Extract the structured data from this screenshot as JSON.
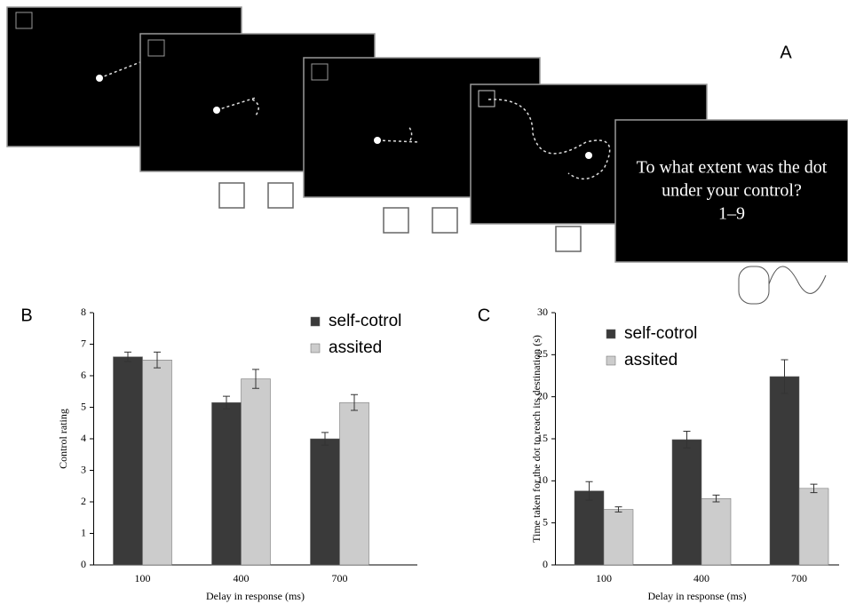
{
  "panel_a": {
    "label": "A",
    "question_line_1": "To what extent was the dot",
    "question_line_2": "under your control?",
    "scale": "1–9"
  },
  "chart_data": [
    {
      "type": "bar",
      "panel_label": "B",
      "x_label": "Delay in response (ms)",
      "y_label": "Control rating",
      "categories": [
        "100",
        "400",
        "700"
      ],
      "ylim": [
        0,
        8
      ],
      "yticks": [
        0,
        1,
        2,
        3,
        4,
        5,
        6,
        7,
        8
      ],
      "series": [
        {
          "name": "self-cotrol",
          "color": "#3a3a3a",
          "values": [
            6.6,
            5.15,
            4.0
          ],
          "errors": [
            0.15,
            0.2,
            0.2
          ]
        },
        {
          "name": "assited",
          "color": "#cccccc",
          "values": [
            6.5,
            5.9,
            5.15
          ],
          "errors": [
            0.25,
            0.3,
            0.25
          ]
        }
      ]
    },
    {
      "type": "bar",
      "panel_label": "C",
      "x_label": "Delay in response (ms)",
      "y_label": "Time taken for the dot to reach its destination (s)",
      "categories": [
        "100",
        "400",
        "700"
      ],
      "ylim": [
        0,
        30
      ],
      "yticks": [
        0,
        5,
        10,
        15,
        20,
        25,
        30
      ],
      "series": [
        {
          "name": "self-cotrol",
          "color": "#3a3a3a",
          "values": [
            8.8,
            14.9,
            22.4
          ],
          "errors": [
            1.1,
            1.0,
            2.0
          ]
        },
        {
          "name": "assited",
          "color": "#cccccc",
          "values": [
            6.6,
            7.9,
            9.1
          ],
          "errors": [
            0.3,
            0.4,
            0.5
          ]
        }
      ]
    }
  ]
}
